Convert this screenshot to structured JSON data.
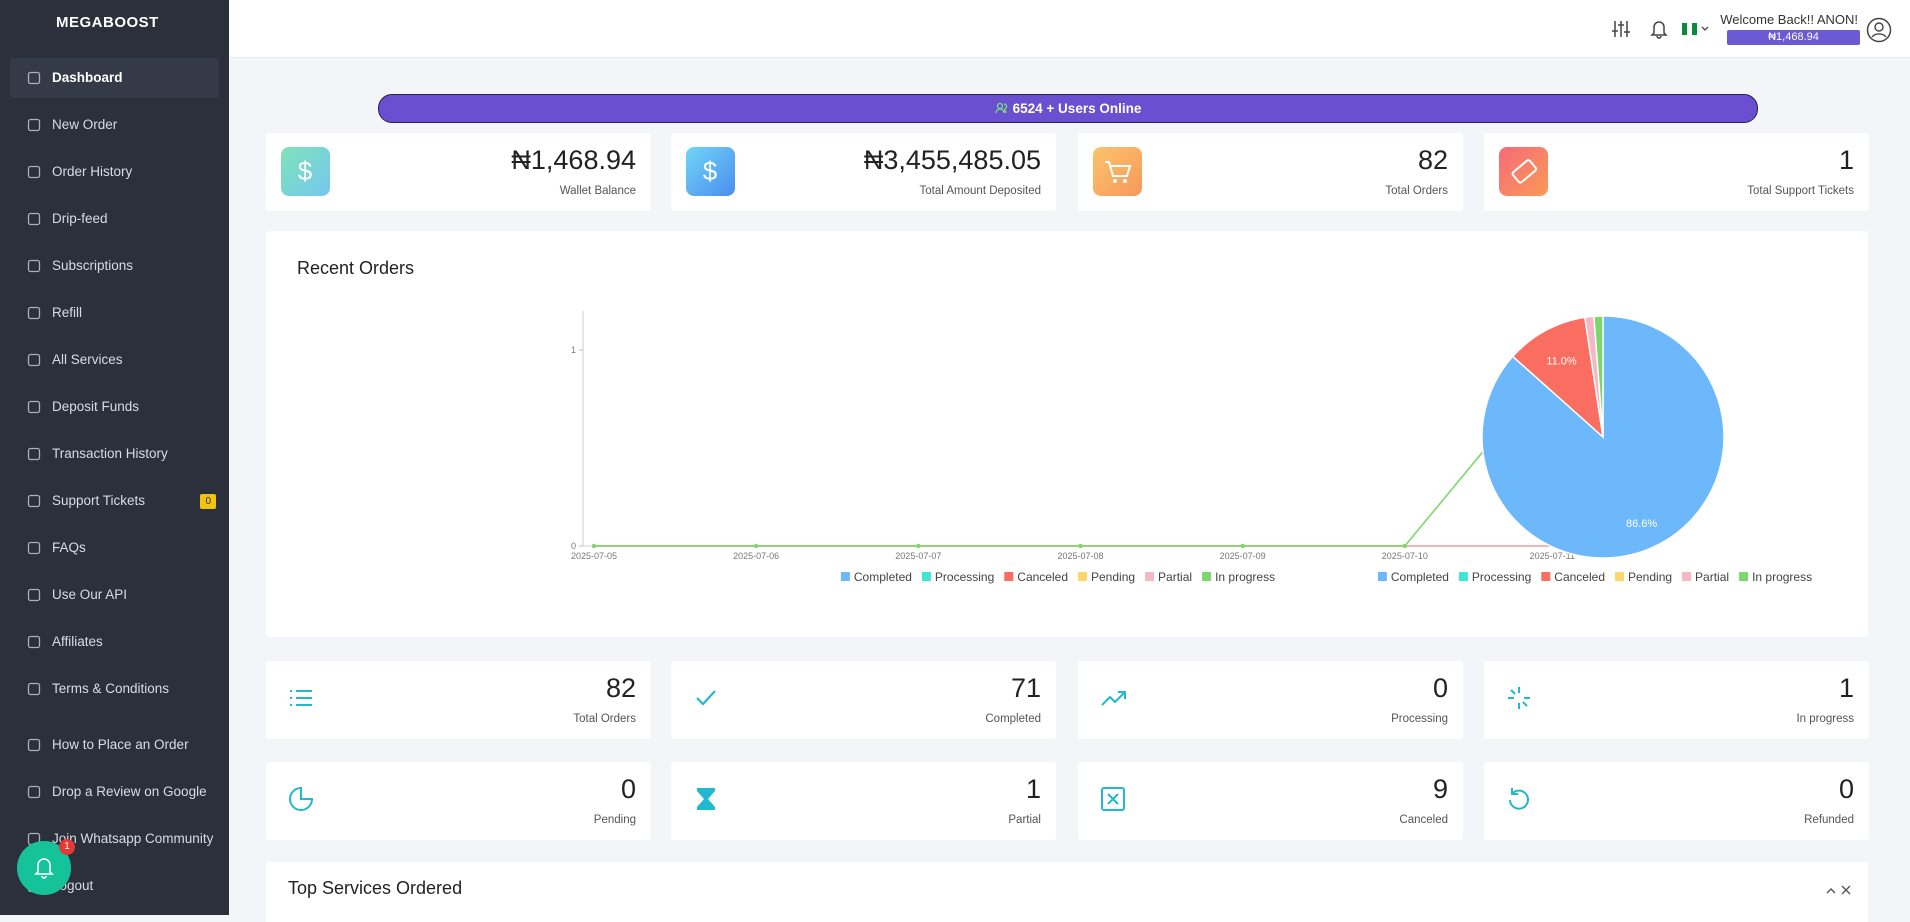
{
  "sidebar": {
    "logo": "MEGABOOST",
    "items": [
      "Dashboard",
      "New Order",
      "Order History",
      "Drip-feed",
      "Subscriptions",
      "Refill",
      "All Services",
      "Deposit Funds",
      "Transaction History",
      "Support Tickets",
      "FAQs",
      "Use Our API",
      "Affiliates",
      "Terms & Conditions",
      "How to Place an Order",
      "Drop a Review on Google",
      "Join Whatsapp Community",
      "Logout"
    ],
    "support_badge": "0"
  },
  "header": {
    "welcome": "Welcome Back!! ANON!",
    "balance": "₦1,468.94"
  },
  "online_banner": "6524 + Users Online",
  "stats": [
    {
      "value": "₦1,468.94",
      "label": "Wallet Balance"
    },
    {
      "value": "₦3,455,485.05",
      "label": "Total Amount Deposited"
    },
    {
      "value": 82,
      "label": "Total Orders"
    },
    {
      "value": 1,
      "label": "Total Support Tickets"
    }
  ],
  "panel_title": "Recent Orders",
  "chart_data": [
    {
      "type": "line",
      "categories": [
        "2025-07-05",
        "2025-07-06",
        "2025-07-07",
        "2025-07-08",
        "2025-07-09",
        "2025-07-10",
        "2025-07-11"
      ],
      "series": [
        {
          "name": "Completed",
          "color": "#6cb8fb",
          "values": [
            0,
            0,
            0,
            0,
            0,
            0,
            0
          ]
        },
        {
          "name": "Processing",
          "color": "#3ee6d3",
          "values": [
            0,
            0,
            0,
            0,
            0,
            0,
            0
          ]
        },
        {
          "name": "Canceled",
          "color": "#fa6e61",
          "values": [
            0,
            0,
            0,
            0,
            0,
            0,
            0
          ]
        },
        {
          "name": "Pending",
          "color": "#fdd76b",
          "values": [
            0,
            0,
            0,
            0,
            0,
            0,
            0
          ]
        },
        {
          "name": "Partial",
          "color": "#f5b6c6",
          "values": [
            0,
            0,
            0,
            0,
            0,
            0,
            0
          ]
        },
        {
          "name": "In progress",
          "color": "#7bd86a",
          "values": [
            0,
            0,
            0,
            0,
            0,
            0,
            1
          ]
        }
      ],
      "ylim": [
        0,
        1.2
      ],
      "yticks": [
        0,
        1
      ]
    },
    {
      "type": "pie",
      "categories": [
        "Completed",
        "Processing",
        "Canceled",
        "Pending",
        "Partial",
        "In progress"
      ],
      "colors": [
        "#6cb8fb",
        "#3ee6d3",
        "#fa6e61",
        "#fdd76b",
        "#f5b6c6",
        "#7bd86a"
      ],
      "values": [
        86.6,
        0,
        11.0,
        0,
        1.2,
        1.2
      ],
      "value_labels": [
        "86.6%",
        null,
        "11.0%",
        null,
        null,
        null
      ]
    }
  ],
  "order_stats": [
    {
      "value": 82,
      "label": "Total Orders"
    },
    {
      "value": 71,
      "label": "Completed"
    },
    {
      "value": 0,
      "label": "Processing"
    },
    {
      "value": 1,
      "label": "In progress"
    },
    {
      "value": 0,
      "label": "Pending"
    },
    {
      "value": 1,
      "label": "Partial"
    },
    {
      "value": 9,
      "label": "Canceled"
    },
    {
      "value": 0,
      "label": "Refunded"
    }
  ],
  "top_services": {
    "title": "Top Services Ordered"
  },
  "notification_count": 1
}
